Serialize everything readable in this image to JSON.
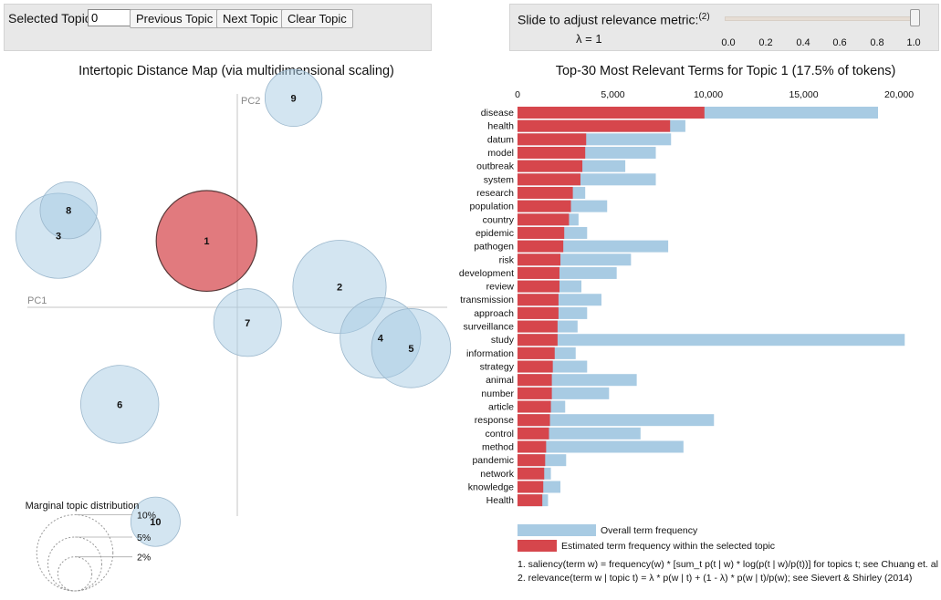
{
  "controls": {
    "selected_topic_label": "Selected Topic:",
    "selected_topic_value": "0",
    "prev_label": "Previous Topic",
    "next_label": "Next Topic",
    "clear_label": "Clear Topic"
  },
  "slider": {
    "label": "Slide to adjust relevance metric:",
    "footnote_ref": "(2)",
    "lambda_text": "λ = 1",
    "lambda": 1.0,
    "ticks": [
      "0.0",
      "0.2",
      "0.4",
      "0.6",
      "0.8",
      "1.0"
    ]
  },
  "colors": {
    "selected": "#d6464c",
    "circle_fill": "#a8cbe3",
    "overall_bar": "#a8cbe3",
    "estimated_bar": "#d6464c"
  },
  "chart_data": [
    {
      "type": "scatter",
      "title": "Intertopic Distance Map (via multidimensional scaling)",
      "xlabel": "PC1",
      "ylabel": "PC2",
      "selected_topic": "1",
      "topics": [
        {
          "label": "1",
          "x": -0.06,
          "y": 0.13,
          "size": 17.5
        },
        {
          "label": "2",
          "x": 0.2,
          "y": 0.04,
          "size": 15.0
        },
        {
          "label": "3",
          "x": -0.35,
          "y": 0.14,
          "size": 12.5
        },
        {
          "label": "4",
          "x": 0.28,
          "y": -0.06,
          "size": 11.2
        },
        {
          "label": "5",
          "x": 0.34,
          "y": -0.08,
          "size": 10.8
        },
        {
          "label": "6",
          "x": -0.23,
          "y": -0.19,
          "size": 10.5
        },
        {
          "label": "7",
          "x": 0.02,
          "y": -0.03,
          "size": 7.9
        },
        {
          "label": "8",
          "x": -0.33,
          "y": 0.19,
          "size": 5.6
        },
        {
          "label": "9",
          "x": 0.11,
          "y": 0.41,
          "size": 5.6
        },
        {
          "label": "10",
          "x": -0.16,
          "y": -0.42,
          "size": 4.2
        }
      ],
      "legend": {
        "title": "Marginal topic distribution",
        "items": [
          {
            "label": "2%",
            "value": 2
          },
          {
            "label": "5%",
            "value": 5
          },
          {
            "label": "10%",
            "value": 10
          }
        ]
      }
    },
    {
      "type": "bar",
      "title": "Top-30 Most Relevant Terms for Topic 1 (17.5% of tokens)",
      "xlim": [
        0,
        20000
      ],
      "xticks": [
        0,
        5000,
        10000,
        15000,
        20000
      ],
      "xtick_labels": [
        "0",
        "5,000",
        "10,000",
        "15,000",
        "20,000"
      ],
      "categories": [
        "disease",
        "health",
        "datum",
        "model",
        "outbreak",
        "system",
        "research",
        "population",
        "country",
        "epidemic",
        "pathogen",
        "risk",
        "development",
        "review",
        "transmission",
        "approach",
        "surveillance",
        "study",
        "information",
        "strategy",
        "animal",
        "number",
        "article",
        "response",
        "control",
        "method",
        "pandemic",
        "network",
        "knowledge",
        "Health"
      ],
      "series": [
        {
          "name": "Overall term frequency",
          "values": [
            18900,
            8800,
            8050,
            7250,
            5650,
            7250,
            3550,
            4700,
            3200,
            3650,
            7900,
            5950,
            5200,
            3350,
            4400,
            3650,
            3150,
            20300,
            3050,
            3650,
            6250,
            4800,
            2500,
            10300,
            6450,
            8700,
            2550,
            1750,
            2250,
            1600
          ]
        },
        {
          "name": "Estimated term frequency within the selected topic",
          "values": [
            9800,
            8000,
            3600,
            3550,
            3400,
            3300,
            2900,
            2800,
            2700,
            2450,
            2400,
            2250,
            2200,
            2200,
            2150,
            2150,
            2100,
            2100,
            1950,
            1850,
            1800,
            1800,
            1750,
            1700,
            1650,
            1500,
            1450,
            1400,
            1350,
            1300
          ]
        }
      ],
      "legend": [
        {
          "label": "Overall term frequency"
        },
        {
          "label": "Estimated term frequency within the selected topic"
        }
      ]
    }
  ],
  "footnotes": [
    "1. saliency(term w) = frequency(w) * [sum_t p(t | w) * log(p(t | w)/p(t))] for topics t; see Chuang et. al (2012)",
    "2. relevance(term w | topic t) = λ * p(w | t) + (1 - λ) * p(w | t)/p(w); see Sievert & Shirley (2014)"
  ]
}
